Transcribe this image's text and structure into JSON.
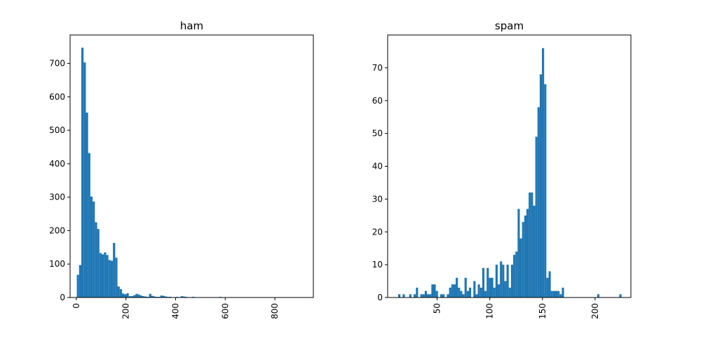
{
  "colors": {
    "bar": "#1f77b4",
    "axes": "#000000",
    "background": "#ffffff"
  },
  "chart_data": [
    {
      "type": "bar",
      "title": "ham",
      "xlabel": "",
      "ylabel": "",
      "xlim": [
        -25,
        955
      ],
      "ylim": [
        0,
        785
      ],
      "bin_width": 9.1,
      "bin_start": 2,
      "counts": [
        68,
        97,
        747,
        703,
        553,
        432,
        302,
        287,
        225,
        205,
        133,
        129,
        135,
        127,
        112,
        110,
        163,
        119,
        33,
        25,
        12,
        10,
        13,
        4,
        4,
        7,
        11,
        9,
        6,
        4,
        3,
        2,
        11,
        5,
        3,
        2,
        2,
        6,
        5,
        3,
        2,
        2,
        1,
        1,
        2,
        1,
        4,
        3,
        2,
        1,
        1,
        2,
        1,
        1,
        1,
        1,
        1,
        1,
        1,
        1,
        1,
        1,
        1,
        2,
        1,
        1,
        1,
        1,
        1,
        1,
        1,
        1,
        1,
        1,
        1,
        1,
        1,
        1,
        1,
        1,
        1,
        1,
        1,
        1,
        1,
        1,
        1,
        1,
        1,
        1,
        1,
        1,
        1,
        1,
        1,
        1,
        1,
        1,
        1,
        1
      ],
      "xticks": [
        0,
        200,
        400,
        600,
        800
      ],
      "xtick_labels": [
        "0",
        "200",
        "400",
        "600",
        "800"
      ],
      "xtick_rotation": -90,
      "yticks": [
        0,
        100,
        200,
        300,
        400,
        500,
        600,
        700
      ],
      "ytick_labels": [
        "0",
        "100",
        "200",
        "300",
        "400",
        "500",
        "600",
        "700"
      ],
      "grid": false
    },
    {
      "type": "bar",
      "title": "spam",
      "xlabel": "",
      "ylabel": "",
      "xlim": [
        3,
        234
      ],
      "ylim": [
        0,
        80
      ],
      "bin_width": 2.1,
      "bin_start": 13,
      "counts": [
        1,
        0,
        1,
        0,
        0,
        1,
        0,
        1,
        3,
        0,
        1,
        1,
        2,
        1,
        1,
        4,
        4,
        2,
        0,
        1,
        1,
        0,
        1,
        3,
        4,
        4,
        6,
        3,
        2,
        1,
        6,
        2,
        3,
        0,
        5,
        1,
        4,
        3,
        9,
        2,
        9,
        6,
        6,
        3,
        10,
        4,
        11,
        10,
        5,
        10,
        3,
        10,
        13,
        14,
        27,
        18,
        23,
        25,
        27,
        32,
        32,
        28,
        49,
        58,
        68,
        76,
        65,
        6,
        8,
        2,
        2,
        2,
        2,
        1,
        3,
        0,
        0,
        0,
        0,
        0,
        0,
        0,
        0,
        0,
        0,
        0,
        0,
        0,
        0,
        0,
        1,
        0,
        0,
        0,
        0,
        0,
        0,
        0,
        0,
        0,
        1
      ],
      "xticks": [
        50,
        100,
        150,
        200
      ],
      "xtick_labels": [
        "50",
        "100",
        "150",
        "200"
      ],
      "xtick_rotation": -90,
      "yticks": [
        0,
        10,
        20,
        30,
        40,
        50,
        60,
        70
      ],
      "ytick_labels": [
        "0",
        "10",
        "20",
        "30",
        "40",
        "50",
        "60",
        "70"
      ],
      "grid": false
    }
  ]
}
